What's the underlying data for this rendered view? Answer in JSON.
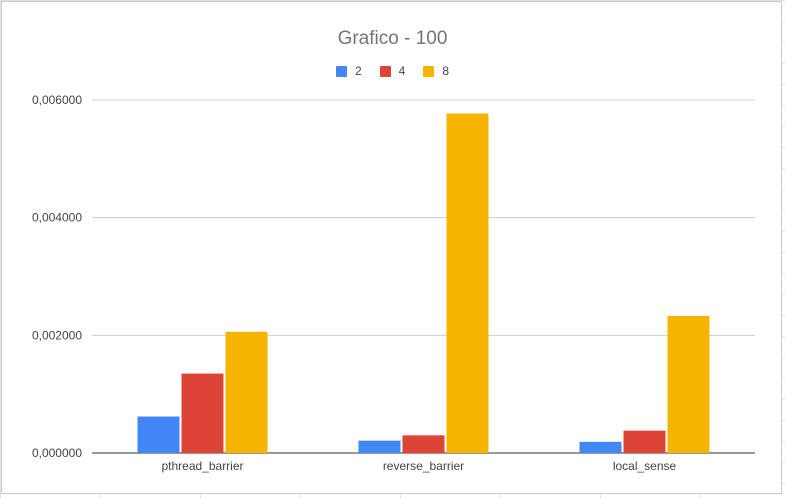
{
  "chart_data": {
    "type": "bar",
    "title": "Grafico  - 100",
    "xlabel": "",
    "ylabel": "",
    "categories": [
      "pthread_barrier",
      "reverse_barrier",
      "local_sense"
    ],
    "series": [
      {
        "name": "2",
        "color": "#4285f4",
        "values": [
          0.00062,
          0.00021,
          0.00019
        ]
      },
      {
        "name": "4",
        "color": "#db4437",
        "values": [
          0.00135,
          0.0003,
          0.00038
        ]
      },
      {
        "name": "8",
        "color": "#f4b400",
        "values": [
          0.00206,
          0.00577,
          0.00233
        ]
      }
    ],
    "ylim": [
      0,
      0.006
    ],
    "yticks": [
      "0,000000",
      "0,002000",
      "0,004000",
      "0,006000"
    ],
    "grid": true,
    "legend_position": "top"
  }
}
